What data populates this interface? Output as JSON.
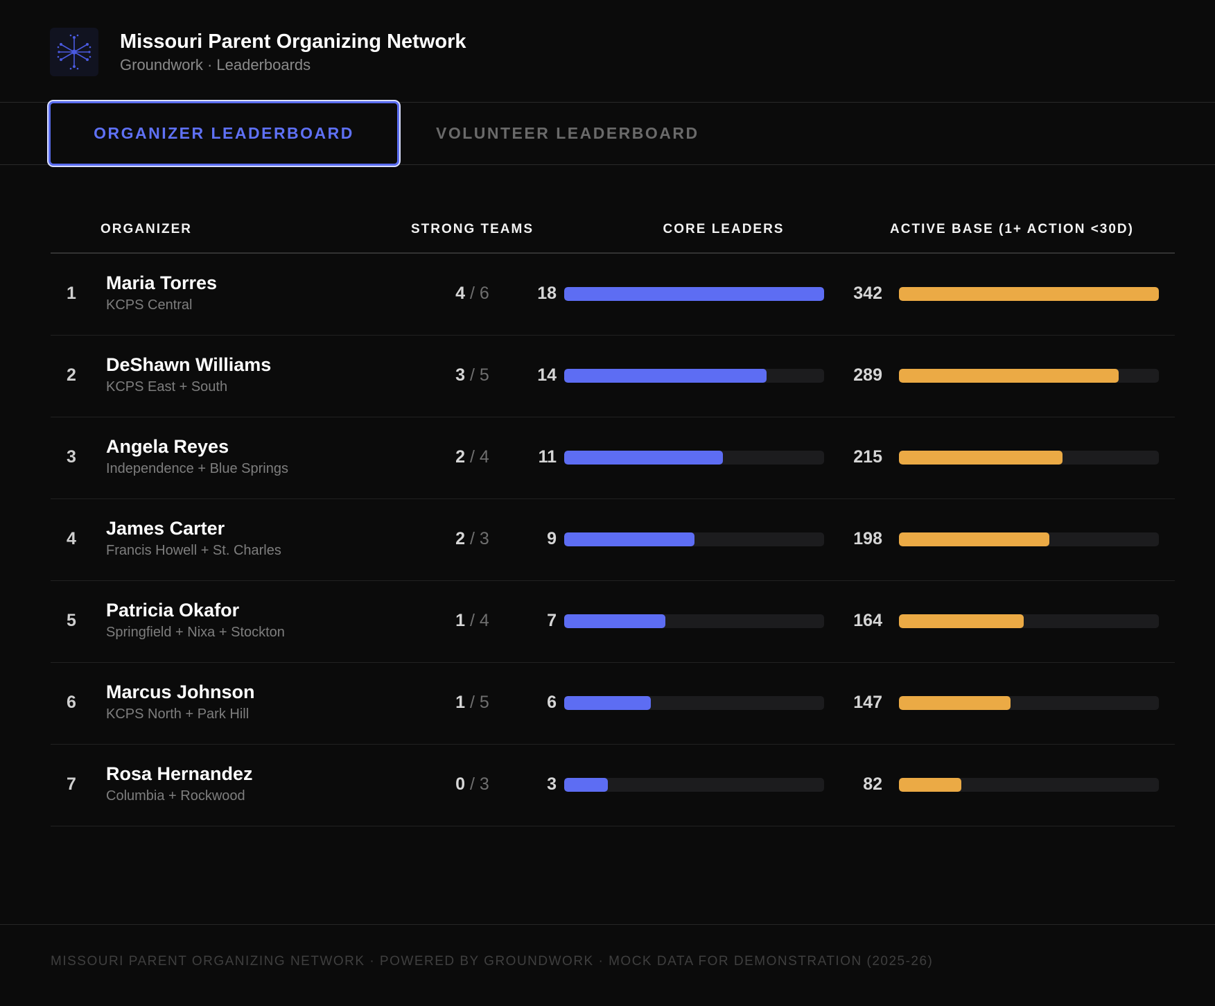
{
  "header": {
    "org_name": "Missouri Parent Organizing Network",
    "subtitle": "Groundwork · Leaderboards",
    "logo_icon": "network-hub-icon"
  },
  "tabs": [
    {
      "label": "ORGANIZER LEADERBOARD",
      "active": true
    },
    {
      "label": "VOLUNTEER LEADERBOARD",
      "active": false
    }
  ],
  "table": {
    "columns": {
      "organizer": "ORGANIZER",
      "strong_teams": "STRONG TEAMS",
      "core_leaders": "CORE LEADERS",
      "active_base": "ACTIVE BASE (1+ ACTION <30D)"
    },
    "core_leaders_max": 18,
    "active_base_max": 342,
    "rows": [
      {
        "rank": "1",
        "name": "Maria Torres",
        "district": "KCPS Central",
        "strong": "4",
        "teams_total": "6",
        "core_leaders": 18,
        "active_base": 342
      },
      {
        "rank": "2",
        "name": "DeShawn Williams",
        "district": "KCPS East + South",
        "strong": "3",
        "teams_total": "5",
        "core_leaders": 14,
        "active_base": 289
      },
      {
        "rank": "3",
        "name": "Angela Reyes",
        "district": "Independence + Blue Springs",
        "strong": "2",
        "teams_total": "4",
        "core_leaders": 11,
        "active_base": 215
      },
      {
        "rank": "4",
        "name": "James Carter",
        "district": "Francis Howell + St. Charles",
        "strong": "2",
        "teams_total": "3",
        "core_leaders": 9,
        "active_base": 198
      },
      {
        "rank": "5",
        "name": "Patricia Okafor",
        "district": "Springfield + Nixa + Stockton",
        "strong": "1",
        "teams_total": "4",
        "core_leaders": 7,
        "active_base": 164
      },
      {
        "rank": "6",
        "name": "Marcus Johnson",
        "district": "KCPS North + Park Hill",
        "strong": "1",
        "teams_total": "5",
        "core_leaders": 6,
        "active_base": 147
      },
      {
        "rank": "7",
        "name": "Rosa Hernandez",
        "district": "Columbia + Rockwood",
        "strong": "0",
        "teams_total": "3",
        "core_leaders": 3,
        "active_base": 82
      }
    ]
  },
  "footer": {
    "text": "MISSOURI PARENT ORGANIZING NETWORK · POWERED BY GROUNDWORK · MOCK DATA FOR DEMONSTRATION (2025-26)"
  },
  "colors": {
    "accent": "#5d6df3",
    "core_bar": "#5d6df3",
    "base_bar": "#ebaa45",
    "background": "#0b0b0b"
  }
}
